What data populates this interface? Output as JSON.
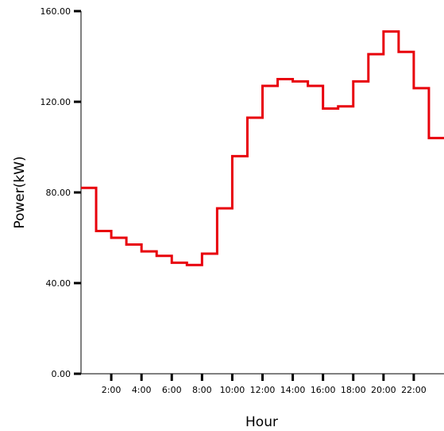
{
  "chart_data": {
    "type": "line",
    "style": "step",
    "xlabel": "Hour",
    "ylabel": "Power(kW)",
    "ylim": [
      0,
      160
    ],
    "yticks": [
      "0.00",
      "40.00",
      "80.00",
      "120.00",
      "160.00"
    ],
    "ytick_values": [
      0,
      40,
      80,
      120,
      160
    ],
    "xlim": [
      0,
      24
    ],
    "xticks": [
      "2:00",
      "4:00",
      "6:00",
      "8:00",
      "10:00",
      "12:00",
      "14:00",
      "16:00",
      "18:00",
      "20:00",
      "22:00"
    ],
    "xtick_values": [
      2,
      4,
      6,
      8,
      10,
      12,
      14,
      16,
      18,
      20,
      22
    ],
    "grid": false,
    "color": "#e8000b",
    "series": [
      {
        "x": [
          0,
          1,
          2,
          3,
          4,
          5,
          6,
          7,
          8,
          9,
          10,
          11,
          12,
          13,
          14,
          15,
          16,
          17,
          18,
          19,
          20,
          21,
          22,
          23
        ],
        "values": [
          82,
          63,
          60,
          57,
          54,
          52,
          49,
          48,
          53,
          73,
          96,
          113,
          127,
          130,
          129,
          127,
          117,
          118,
          129,
          141,
          151,
          142,
          126,
          104
        ]
      }
    ]
  }
}
